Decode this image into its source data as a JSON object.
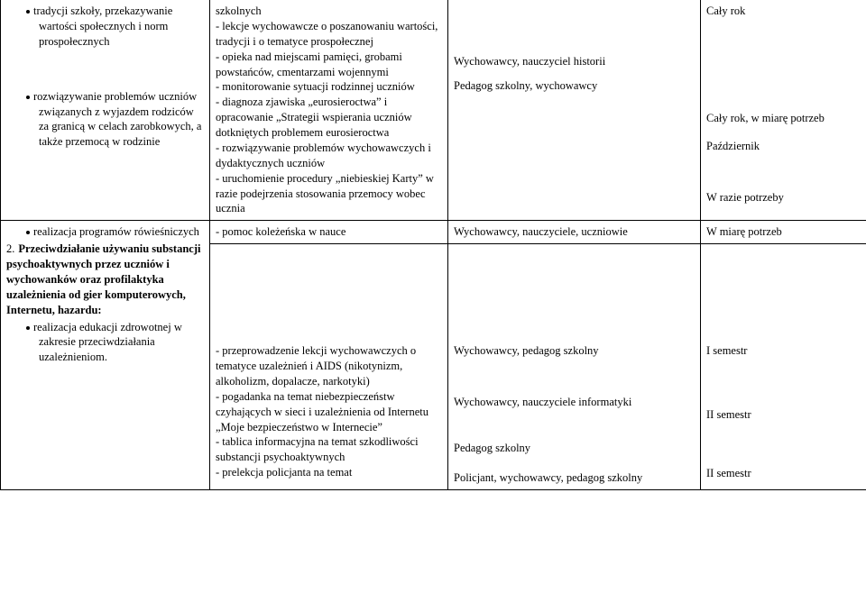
{
  "row1": {
    "col1": {
      "bullet1": "tradycji szkoły, przekazywanie wartości społecznych i norm prospołecznych",
      "bullet2": "rozwiązywanie problemów uczniów związanych z wyjazdem rodziców za granicą w celach zarobkowych, a także przemocą w rodzinie"
    },
    "col2": {
      "text": "szkolnych\n- lekcje wychowawcze o poszanowaniu wartości, tradycji i o tematyce prospołecznej\n- opieka nad miejscami pamięci, grobami powstańców, cmentarzami wojennymi\n- monitorowanie sytuacji rodzinnej uczniów\n- diagnoza zjawiska „eurosieroctwa” i opracowanie „Strategii wspierania uczniów dotkniętych problemem eurosieroctwa\n- rozwiązywanie problemów wychowawczych i dydaktycznych uczniów\n- uruchomienie procedury „niebieskiej Karty” w razie podejrzenia stosowania przemocy wobec ucznia"
    },
    "col3": {
      "g1": "Wychowawcy, nauczyciel historii",
      "g2": "Pedagog szkolny, wychowawcy"
    },
    "col4": {
      "g1": "Cały rok",
      "g2": "Cały rok, w miarę potrzeb",
      "g3": "Październik",
      "g4": "W razie potrzeby"
    }
  },
  "row2": {
    "col1": {
      "bullet1": "realizacja programów rówieśniczych"
    },
    "col2": "- pomoc koleżeńska w nauce",
    "col3": "Wychowawcy, nauczyciele, uczniowie",
    "col4": "W miarę potrzeb"
  },
  "row3": {
    "col1": {
      "num": "2.",
      "head": "Przeciwdziałanie używaniu substancji psychoaktywnych przez uczniów  i wychowanków oraz profilaktyka uzależnienia od gier komputerowych, Internetu, hazardu:",
      "bullet1": "realizacja edukacji zdrowotnej w zakresie przeciwdziałania uzależnieniom."
    },
    "col2": "- przeprowadzenie lekcji wychowawczych o tematyce uzależnień i AIDS (nikotynizm, alkoholizm, dopalacze, narkotyki)\n- pogadanka na temat niebezpieczeństw czyhających w sieci i uzależnienia od Internetu „Moje bezpieczeństwo w Internecie”\n- tablica informacyjna na temat szkodliwości substancji psychoaktywnych\n- prelekcja policjanta na temat",
    "col3": {
      "g1": "Wychowawcy, pedagog szkolny",
      "g2": "Wychowawcy, nauczyciele informatyki",
      "g3": "Pedagog szkolny",
      "g4": "Policjant, wychowawcy, pedagog szkolny"
    },
    "col4": {
      "g1": "I semestr",
      "g2": "II semestr",
      "g3": "II semestr"
    }
  }
}
